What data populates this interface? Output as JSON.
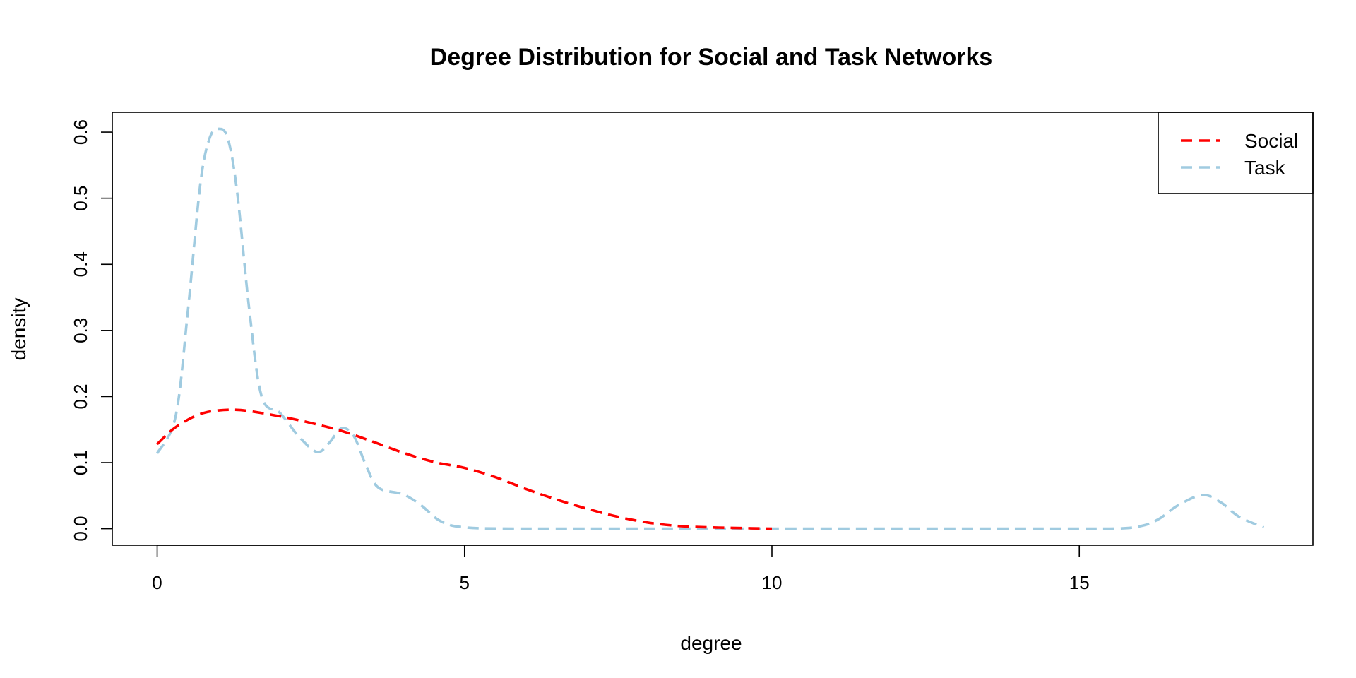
{
  "chart_data": {
    "type": "line",
    "title": "Degree Distribution for Social and Task Networks",
    "xlabel": "degree",
    "ylabel": "density",
    "xlim": [
      -0.73,
      18.8
    ],
    "ylim": [
      -0.025,
      0.63
    ],
    "x_ticks": [
      0,
      5,
      10,
      15
    ],
    "y_ticks": [
      0.0,
      0.1,
      0.2,
      0.3,
      0.4,
      0.5,
      0.6
    ],
    "y_tick_labels": [
      "0.0",
      "0.1",
      "0.2",
      "0.3",
      "0.4",
      "0.5",
      "0.6"
    ],
    "grid": false,
    "legend_position": "top-right",
    "series": [
      {
        "name": "Social",
        "color": "#ff0000",
        "line_style": "dashed",
        "x": [
          0,
          0.25,
          0.5,
          0.75,
          1.0,
          1.25,
          1.5,
          2.0,
          2.5,
          3.0,
          3.5,
          4.0,
          4.5,
          5.0,
          5.5,
          6.0,
          6.5,
          7.0,
          7.5,
          8.0,
          8.5,
          9.0,
          9.5,
          10.0
        ],
        "y": [
          0.128,
          0.15,
          0.165,
          0.175,
          0.179,
          0.18,
          0.178,
          0.17,
          0.16,
          0.148,
          0.132,
          0.115,
          0.101,
          0.092,
          0.078,
          0.06,
          0.044,
          0.03,
          0.018,
          0.009,
          0.004,
          0.002,
          0.001,
          0.0
        ]
      },
      {
        "name": "Task",
        "color": "#a0cbe0",
        "line_style": "dashed",
        "x": [
          0,
          0.3,
          0.5,
          0.7,
          0.85,
          1.0,
          1.15,
          1.3,
          1.5,
          1.7,
          2.0,
          2.3,
          2.6,
          2.8,
          3.0,
          3.2,
          3.4,
          3.6,
          4.0,
          4.3,
          4.6,
          5.0,
          6.0,
          8.0,
          10.0,
          12.0,
          14.0,
          15.5,
          16.0,
          16.3,
          16.6,
          17.0,
          17.3,
          17.6,
          18.0
        ],
        "y": [
          0.114,
          0.17,
          0.33,
          0.52,
          0.59,
          0.605,
          0.59,
          0.51,
          0.33,
          0.2,
          0.175,
          0.14,
          0.116,
          0.13,
          0.152,
          0.14,
          0.095,
          0.062,
          0.052,
          0.035,
          0.012,
          0.002,
          0.0,
          0.0,
          0.0,
          0.0,
          0.0,
          0.0,
          0.004,
          0.015,
          0.035,
          0.051,
          0.04,
          0.018,
          0.002
        ]
      }
    ]
  }
}
